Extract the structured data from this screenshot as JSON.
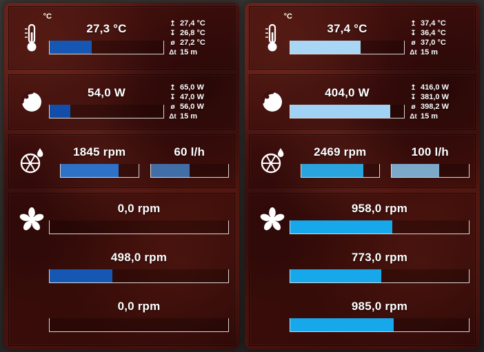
{
  "stats_icons": {
    "max": "↥",
    "min": "↧",
    "avg": "ø",
    "delta": "Δt"
  },
  "panels": [
    {
      "temp": {
        "unit_label": "°C",
        "value": "27,3 °C",
        "bar": {
          "pct": 37,
          "color": "#1757b4"
        },
        "stats": {
          "max": "27,4 °C",
          "min": "26,8 °C",
          "avg": "27,2 °C",
          "delta": "15 m"
        }
      },
      "power": {
        "value": "54,0 W",
        "bar": {
          "pct": 18,
          "color": "#124da9"
        },
        "stats": {
          "max": "65,0 W",
          "min": "47,0 W",
          "avg": "56,0 W",
          "delta": "15 m"
        }
      },
      "flow": {
        "rpm": {
          "value": "1845 rpm",
          "bar": {
            "pct": 75,
            "color": "#2e72c8"
          }
        },
        "lph": {
          "value": "60 l/h",
          "bar": {
            "pct": 50,
            "color": "#416ea6"
          }
        }
      },
      "fans": [
        {
          "value": "0,0 rpm",
          "bar": {
            "pct": 0,
            "color": "#1757b4"
          }
        },
        {
          "value": "498,0 rpm",
          "bar": {
            "pct": 35,
            "color": "#1757b4"
          }
        },
        {
          "value": "0,0 rpm",
          "bar": {
            "pct": 0,
            "color": "#1757b4"
          }
        }
      ]
    },
    {
      "temp": {
        "unit_label": "°C",
        "value": "37,4 °C",
        "bar": {
          "pct": 62,
          "color": "#a9d6f4"
        },
        "stats": {
          "max": "37,4 °C",
          "min": "36,4 °C",
          "avg": "37,0 °C",
          "delta": "15 m"
        }
      },
      "power": {
        "value": "404,0 W",
        "bar": {
          "pct": 88,
          "color": "#9fd2f4"
        },
        "stats": {
          "max": "416,0 W",
          "min": "381,0 W",
          "avg": "398,2 W",
          "delta": "15 m"
        }
      },
      "flow": {
        "rpm": {
          "value": "2469 rpm",
          "bar": {
            "pct": 80,
            "color": "#2aa4de"
          }
        },
        "lph": {
          "value": "100 l/h",
          "bar": {
            "pct": 62,
            "color": "#7ca9c9"
          }
        }
      },
      "fans": [
        {
          "value": "958,0 rpm",
          "bar": {
            "pct": 57,
            "color": "#17a8ec"
          }
        },
        {
          "value": "773,0 rpm",
          "bar": {
            "pct": 51,
            "color": "#17a8ec"
          }
        },
        {
          "value": "985,0 rpm",
          "bar": {
            "pct": 58,
            "color": "#17a8ec"
          }
        }
      ]
    }
  ]
}
